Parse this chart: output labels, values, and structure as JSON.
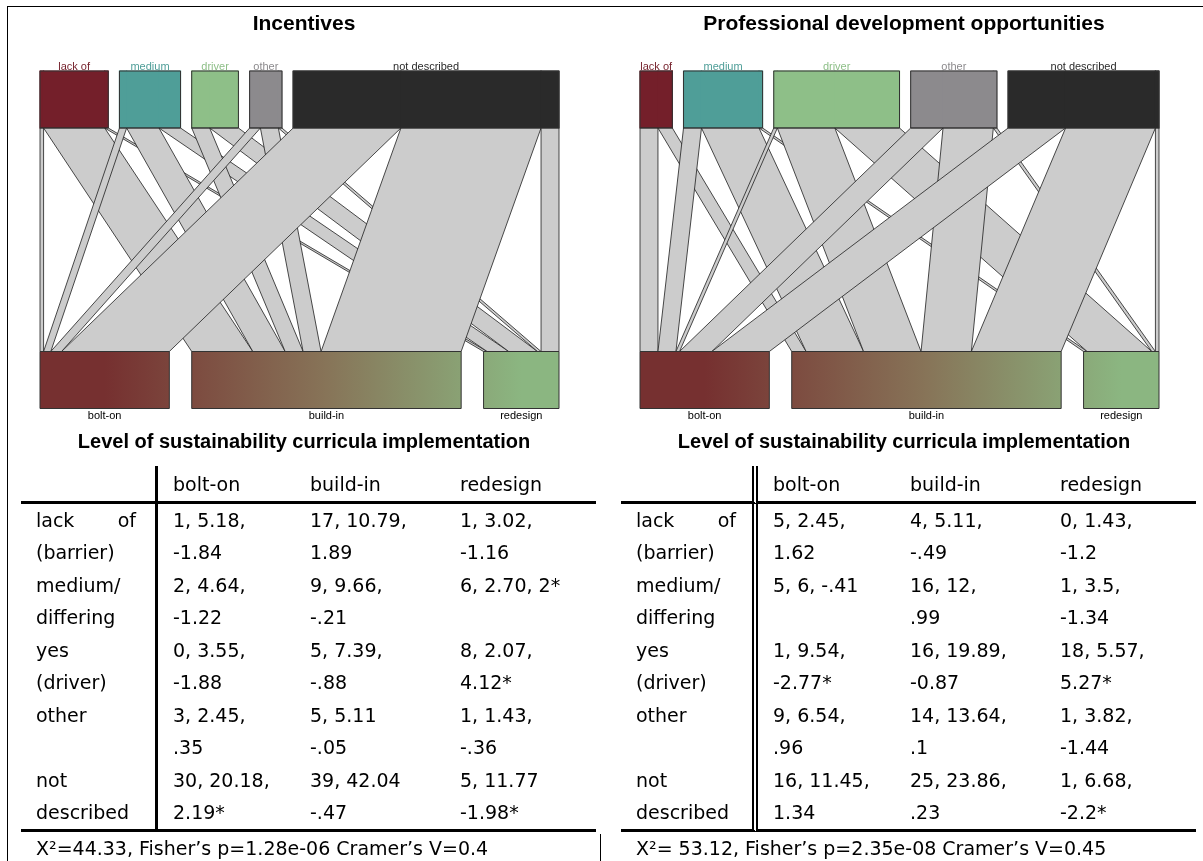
{
  "chart_data": [
    {
      "type": "other",
      "title": "Incentives",
      "xlabel": "Level of sustainability curricula implementation",
      "categories": [
        "bolt-on",
        "build-in",
        "redesign"
      ],
      "colors": [
        "#763030",
        "#877458",
        "#8bb681"
      ],
      "y_categories": [
        "lack of (barrier)",
        "medium/ differing",
        "yes (driver)",
        "other",
        "not described"
      ],
      "series": [
        {
          "name": "lack of",
          "color": "#741f2a",
          "values": [
            1,
            17,
            1
          ],
          "value_labels": [
            "1, 5.18, -1.84",
            "17, 10.79, 1.89",
            "1, 3.02, -1.16"
          ]
        },
        {
          "name": "medium",
          "color": "#4f9e98",
          "values": [
            2,
            9,
            6
          ],
          "value_labels": [
            "2, 4.64, -1.22",
            "9, 9.66, -.21",
            "6, 2.70, 2*"
          ]
        },
        {
          "name": "driver",
          "color": "#8ebf88",
          "values": [
            0,
            5,
            8
          ],
          "value_labels": [
            "0, 3.55, -1.88",
            "5, 7.39, -.88",
            "8, 2.07, 4.12*"
          ]
        },
        {
          "name": "other",
          "color": "#8c8a8d",
          "values": [
            3,
            5,
            1
          ],
          "value_labels": [
            "3, 2.45, .35",
            "5, 5.11 -.05",
            "1, 1.43, -.36"
          ]
        },
        {
          "name": "not described",
          "color": "#2a2a2a",
          "values": [
            30,
            39,
            5
          ],
          "value_labels": [
            "30, 20.18, 2.19*",
            "39, 42.04 -.47",
            "5, 11.77 -1.98*"
          ]
        }
      ],
      "annotations": [
        "X²=44.33, Fisher’s p=1.28e-06 Cramer’s V=0.4"
      ]
    },
    {
      "type": "other",
      "title": "Professional development opportunities",
      "xlabel": "Level of sustainability curricula implementation",
      "categories": [
        "bolt-on",
        "build-in",
        "redesign"
      ],
      "colors": [
        "#763030",
        "#877458",
        "#8bb681"
      ],
      "y_categories": [
        "lack of (barrier)",
        "medium/ differing",
        "yes (driver)",
        "other",
        "not described"
      ],
      "series": [
        {
          "name": "lack of",
          "color": "#741f2a",
          "values": [
            5,
            4,
            0
          ],
          "value_labels": [
            "5, 2.45, 1.62",
            "4, 5.11, -.49",
            "0, 1.43, -1.2"
          ]
        },
        {
          "name": "medium",
          "color": "#4f9e98",
          "values": [
            5,
            16,
            1
          ],
          "value_labels": [
            "5, 6, -.41",
            "16, 12, .99",
            "1, 3.5, -1.34"
          ]
        },
        {
          "name": "driver",
          "color": "#8ebf88",
          "values": [
            1,
            16,
            18
          ],
          "value_labels": [
            "1, 9.54, -2.77*",
            "16, 19.89, -0.87",
            "18, 5.57, 5.27*"
          ]
        },
        {
          "name": "other",
          "color": "#8c8a8d",
          "values": [
            9,
            14,
            1
          ],
          "value_labels": [
            "9, 6.54, .96",
            "14, 13.64, .1",
            "1, 3.82, -1.44"
          ]
        },
        {
          "name": "not described",
          "color": "#2a2a2a",
          "values": [
            16,
            25,
            1
          ],
          "value_labels": [
            "16, 11.45, 1.34",
            "25, 23.86, .23",
            "1, 6.68, -2.2*"
          ]
        }
      ],
      "annotations": [
        "X²= 53.12, Fisher’s p=2.35e-08 Cramer’s V=0.45"
      ]
    }
  ]
}
